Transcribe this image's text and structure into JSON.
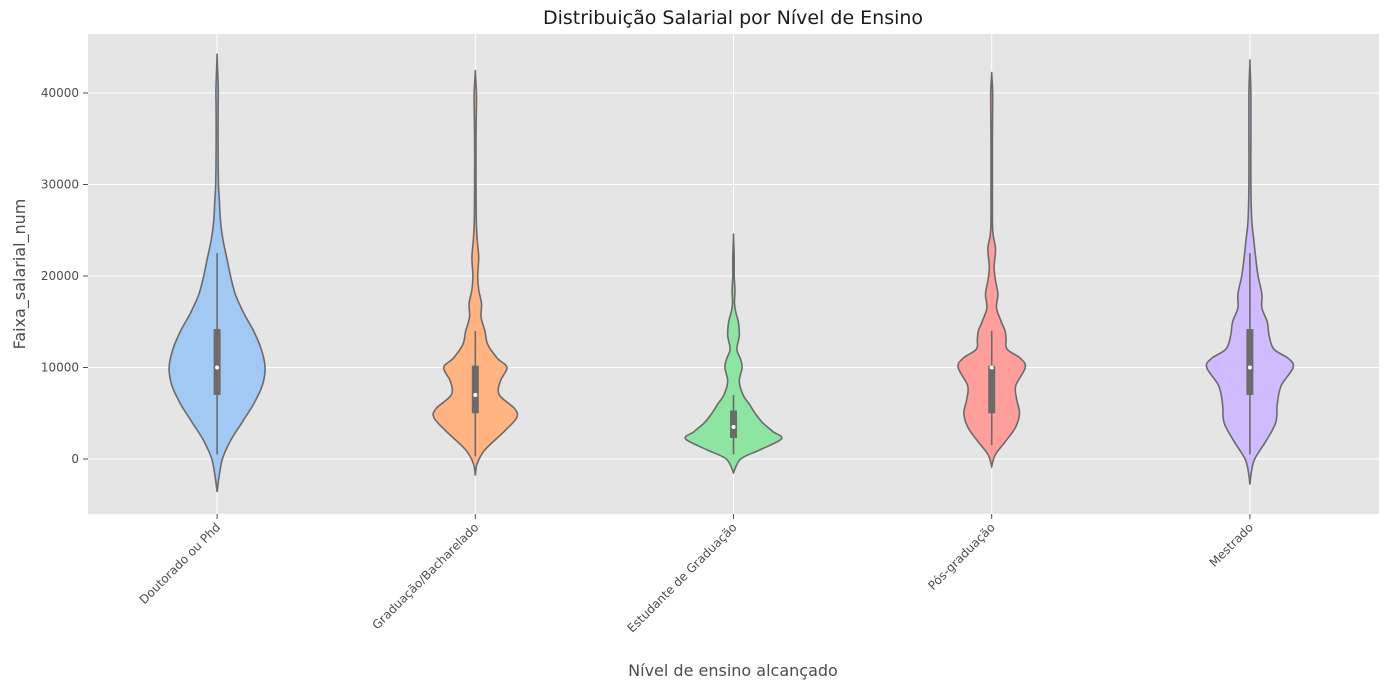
{
  "chart_data": {
    "type": "violin",
    "title": "Distribuição Salarial por Nível de Ensino",
    "xlabel": "Nível de ensino alcançado",
    "ylabel": "Faixa_salarial_num",
    "ylim": [
      -6000,
      46500
    ],
    "yticks": [
      0,
      10000,
      20000,
      30000,
      40000
    ],
    "ytick_labels": [
      "0",
      "10000",
      "20000",
      "30000",
      "40000"
    ],
    "grid": true,
    "categories": [
      "Doutorado ou Phd",
      "Graduação/Bacharelado",
      "Estudante de Graduação",
      "Pós-graduação",
      "Mestrado"
    ],
    "colors": [
      "#a1c9f4",
      "#ffb482",
      "#8de5a1",
      "#ff9f9b",
      "#d0bbff"
    ],
    "violins": [
      {
        "name": "Doutorado ou Phd",
        "whisker": [
          500,
          22500
        ],
        "box": [
          7000,
          14200
        ],
        "median": 10000,
        "profile": [
          [
            -3600,
            0
          ],
          [
            -2000,
            0.04
          ],
          [
            0,
            0.11
          ],
          [
            2000,
            0.28
          ],
          [
            4000,
            0.52
          ],
          [
            6000,
            0.76
          ],
          [
            8000,
            0.94
          ],
          [
            10000,
            1.0
          ],
          [
            12000,
            0.92
          ],
          [
            14000,
            0.76
          ],
          [
            16000,
            0.55
          ],
          [
            18000,
            0.38
          ],
          [
            20000,
            0.28
          ],
          [
            22000,
            0.2
          ],
          [
            24000,
            0.12
          ],
          [
            26000,
            0.07
          ],
          [
            28000,
            0.05
          ],
          [
            30000,
            0.03
          ],
          [
            34000,
            0.02
          ],
          [
            38000,
            0.02
          ],
          [
            40000,
            0.025
          ],
          [
            42000,
            0.015
          ],
          [
            44000,
            0
          ]
        ]
      },
      {
        "name": "Graduação/Bacharelado",
        "whisker": [
          300,
          14000
        ],
        "box": [
          5000,
          10200
        ],
        "median": 7000,
        "profile": [
          [
            -1800,
            0
          ],
          [
            -500,
            0.04
          ],
          [
            1000,
            0.2
          ],
          [
            3000,
            0.6
          ],
          [
            4500,
            0.86
          ],
          [
            5500,
            0.82
          ],
          [
            7000,
            0.5
          ],
          [
            8500,
            0.52
          ],
          [
            10000,
            0.66
          ],
          [
            11000,
            0.46
          ],
          [
            12500,
            0.26
          ],
          [
            14000,
            0.2
          ],
          [
            15500,
            0.12
          ],
          [
            17000,
            0.13
          ],
          [
            18500,
            0.07
          ],
          [
            20000,
            0.05
          ],
          [
            22000,
            0.07
          ],
          [
            24000,
            0.04
          ],
          [
            26000,
            0.02
          ],
          [
            30000,
            0.015
          ],
          [
            35000,
            0.015
          ],
          [
            39500,
            0.025
          ],
          [
            41000,
            0.015
          ],
          [
            42300,
            0
          ]
        ]
      },
      {
        "name": "Estudante de Graduação",
        "whisker": [
          500,
          7000
        ],
        "box": [
          2300,
          5300
        ],
        "median": 3500,
        "profile": [
          [
            -1500,
            0
          ],
          [
            0,
            0.15
          ],
          [
            1000,
            0.55
          ],
          [
            2200,
            1.0
          ],
          [
            3000,
            0.82
          ],
          [
            4000,
            0.6
          ],
          [
            5000,
            0.45
          ],
          [
            6000,
            0.33
          ],
          [
            7000,
            0.2
          ],
          [
            8500,
            0.12
          ],
          [
            10000,
            0.18
          ],
          [
            11000,
            0.14
          ],
          [
            12000,
            0.07
          ],
          [
            13500,
            0.12
          ],
          [
            15000,
            0.1
          ],
          [
            16000,
            0.05
          ],
          [
            17000,
            0.02
          ],
          [
            18500,
            0.03
          ],
          [
            20000,
            0.015
          ],
          [
            22000,
            0.015
          ],
          [
            24300,
            0
          ]
        ]
      },
      {
        "name": "Pós-graduação",
        "whisker": [
          1500,
          14000
        ],
        "box": [
          5000,
          10200
        ],
        "median": 10000,
        "profile": [
          [
            -800,
            0
          ],
          [
            500,
            0.08
          ],
          [
            2000,
            0.3
          ],
          [
            3500,
            0.5
          ],
          [
            5000,
            0.58
          ],
          [
            6500,
            0.52
          ],
          [
            8000,
            0.5
          ],
          [
            10000,
            0.7
          ],
          [
            11000,
            0.6
          ],
          [
            12000,
            0.32
          ],
          [
            13000,
            0.3
          ],
          [
            14000,
            0.28
          ],
          [
            15000,
            0.2
          ],
          [
            16500,
            0.1
          ],
          [
            18000,
            0.13
          ],
          [
            19500,
            0.08
          ],
          [
            21000,
            0.05
          ],
          [
            23000,
            0.08
          ],
          [
            25000,
            0.02
          ],
          [
            30000,
            0.015
          ],
          [
            35000,
            0.015
          ],
          [
            40000,
            0.02
          ],
          [
            42000,
            0
          ]
        ]
      },
      {
        "name": "Mestrado",
        "whisker": [
          500,
          22500
        ],
        "box": [
          7000,
          14200
        ],
        "median": 10000,
        "profile": [
          [
            -2800,
            0
          ],
          [
            -1500,
            0.03
          ],
          [
            0,
            0.1
          ],
          [
            2000,
            0.34
          ],
          [
            4000,
            0.54
          ],
          [
            6000,
            0.57
          ],
          [
            8000,
            0.65
          ],
          [
            10000,
            0.9
          ],
          [
            11000,
            0.8
          ],
          [
            12000,
            0.5
          ],
          [
            13500,
            0.4
          ],
          [
            15000,
            0.36
          ],
          [
            16500,
            0.25
          ],
          [
            18000,
            0.25
          ],
          [
            20000,
            0.17
          ],
          [
            22000,
            0.12
          ],
          [
            24000,
            0.08
          ],
          [
            26000,
            0.04
          ],
          [
            30000,
            0.02
          ],
          [
            35000,
            0.02
          ],
          [
            40000,
            0.02
          ],
          [
            43200,
            0
          ]
        ]
      }
    ]
  }
}
